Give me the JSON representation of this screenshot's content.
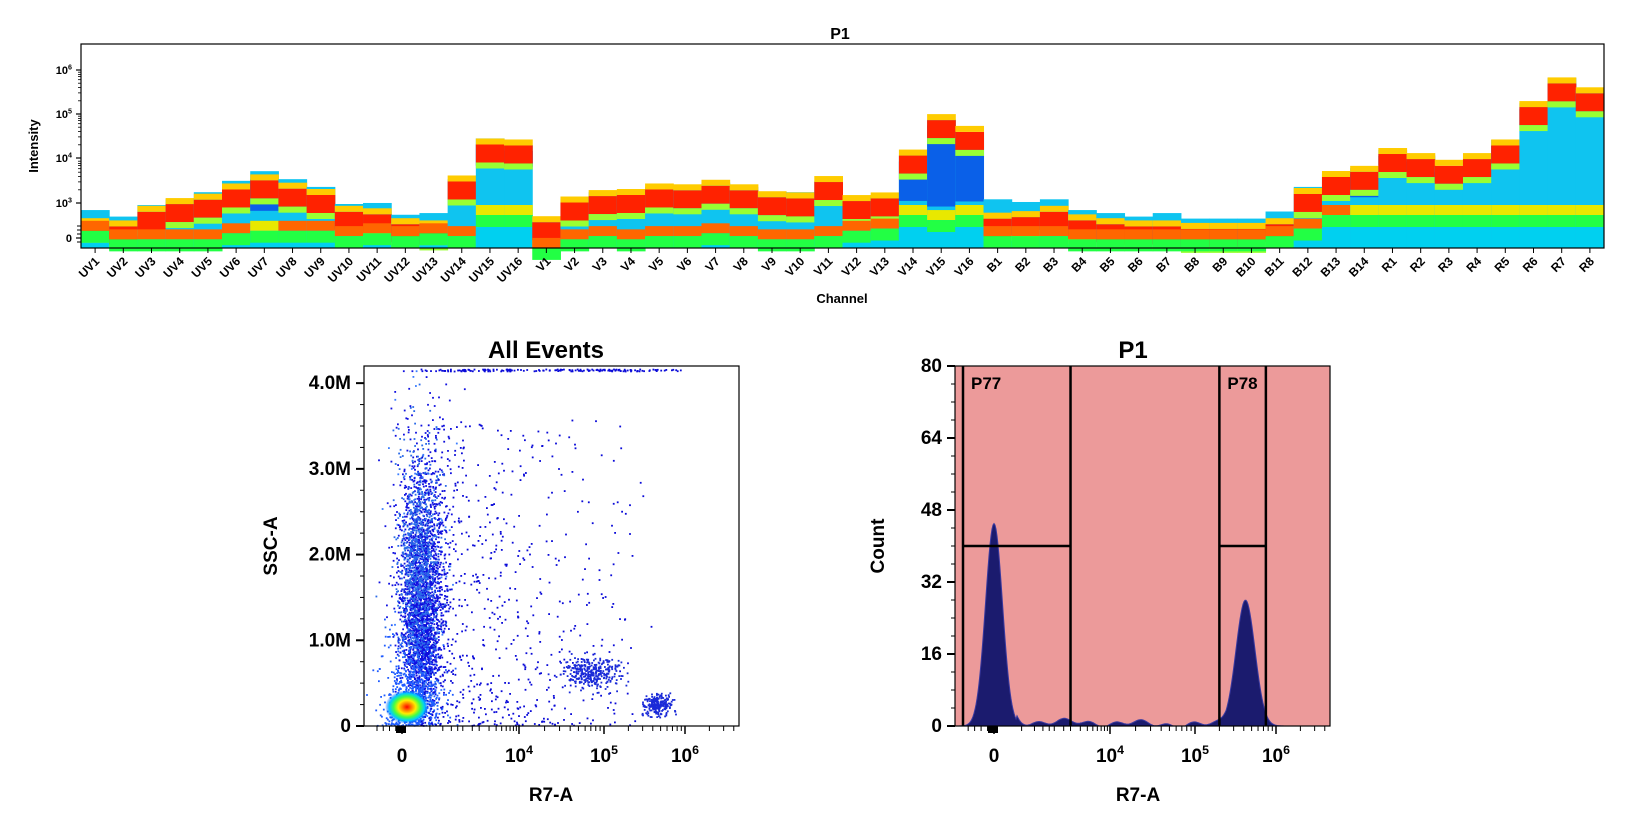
{
  "chart_data": [
    {
      "type": "heatmap",
      "title": "P1",
      "xlabel": "Channel",
      "ylabel": "Intensity",
      "y_scale": "log",
      "y_tick_labels": [
        "0",
        "10^3",
        "10^4",
        "10^5",
        "10^6"
      ],
      "channels": [
        "UV1",
        "UV2",
        "UV3",
        "UV4",
        "UV5",
        "UV6",
        "UV7",
        "UV8",
        "UV9",
        "UV10",
        "UV11",
        "UV12",
        "UV13",
        "UV14",
        "UV15",
        "UV16",
        "V1",
        "V2",
        "V3",
        "V4",
        "V5",
        "V6",
        "V7",
        "V8",
        "V9",
        "V10",
        "V11",
        "V12",
        "V13",
        "V14",
        "V15",
        "V16",
        "B1",
        "B2",
        "B3",
        "B4",
        "B5",
        "B6",
        "B7",
        "B8",
        "B9",
        "B10",
        "B11",
        "B12",
        "B13",
        "B14",
        "R1",
        "R2",
        "R3",
        "R4",
        "R5",
        "R6",
        "R7",
        "R8"
      ],
      "peak_intensity": [
        1500,
        1100,
        1900,
        2500,
        3500,
        6000,
        9500,
        6500,
        4500,
        2000,
        2100,
        1200,
        1300,
        6500,
        45000,
        33000,
        1100,
        2500,
        3500,
        3500,
        4500,
        4000,
        5500,
        4500,
        3500,
        3500,
        6000,
        2400,
        2800,
        20000,
        110000,
        60000,
        2500,
        2200,
        2500,
        1500,
        1300,
        1100,
        1300,
        1000,
        1000,
        1000,
        1400,
        4500,
        8500,
        11000,
        26000,
        20000,
        12000,
        20000,
        42000,
        240000,
        800000,
        450000
      ],
      "median_intensity": [
        500,
        450,
        900,
        1300,
        1600,
        2600,
        4000,
        2700,
        2000,
        900,
        800,
        500,
        450,
        3800,
        22000,
        21000,
        550,
        1400,
        1900,
        2000,
        2600,
        2500,
        3100,
        2500,
        1800,
        1700,
        3700,
        1500,
        1700,
        13000,
        70000,
        40000,
        650,
        700,
        900,
        600,
        500,
        450,
        450,
        400,
        400,
        400,
        500,
        2100,
        4700,
        6000,
        14000,
        11000,
        8000,
        11000,
        21000,
        130000,
        400000,
        250000
      ],
      "dim_intensity": [
        900,
        600,
        600,
        600,
        600,
        800,
        900,
        900,
        900,
        700,
        800,
        700,
        800,
        700,
        8000,
        10000,
        400,
        600,
        700,
        600,
        700,
        700,
        800,
        700,
        600,
        600,
        700,
        900,
        1000,
        2000,
        1500,
        2000,
        700,
        700,
        700,
        600,
        600,
        600,
        600,
        600,
        600,
        600,
        700,
        1000,
        2500,
        2000,
        9000,
        7000,
        5000,
        7500,
        8000,
        60000,
        180000,
        120000
      ]
    },
    {
      "type": "scatter",
      "title": "All Events",
      "xlabel": "R7-A",
      "ylabel": "SSC-A",
      "x_scale": "biexponential",
      "x_tick_labels": [
        "0",
        "10^4",
        "10^5",
        "10^6"
      ],
      "y_tick_labels": [
        "0",
        "1.0M",
        "2.0M",
        "3.0M",
        "4.0M"
      ],
      "ylim": [
        0,
        4200000
      ],
      "populations": [
        {
          "x_center": 0,
          "y_center": 150000,
          "description": "dense core near origin"
        },
        {
          "x_center": 1000,
          "y_center": 2000000,
          "description": "vertical stream up to 4.2M"
        },
        {
          "x_center": 70000,
          "y_center": 620000
        },
        {
          "x_center": 450000,
          "y_center": 250000
        }
      ]
    },
    {
      "type": "histogram",
      "title": "P1",
      "xlabel": "R7-A",
      "ylabel": "Count",
      "x_scale": "biexponential",
      "x_tick_labels": [
        "0",
        "10^4",
        "10^5",
        "10^6"
      ],
      "y_tick_labels": [
        "0",
        "16",
        "32",
        "48",
        "64",
        "80"
      ],
      "ylim": [
        0,
        80
      ],
      "peaks": [
        {
          "x_center": 0,
          "count": 45
        },
        {
          "x_center": 420000,
          "count": 28
        }
      ],
      "gates": [
        {
          "name": "P77",
          "x_range": [
            -1200,
            2000
          ],
          "marker_count": 40
        },
        {
          "name": "P78",
          "x_range": [
            200000,
            750000
          ],
          "marker_count": 40
        }
      ],
      "background_color": "#ec9a9a",
      "fill_color": "#1b1b6e"
    }
  ]
}
